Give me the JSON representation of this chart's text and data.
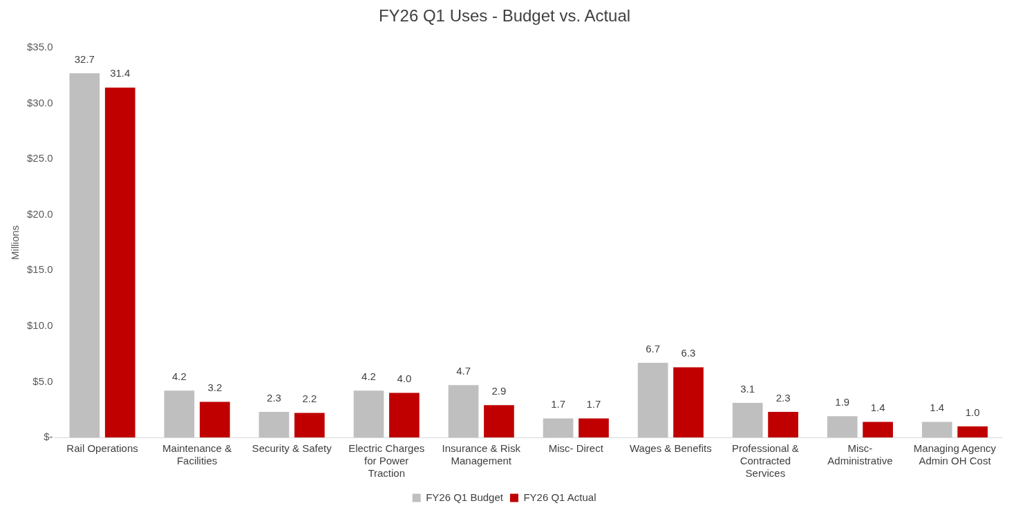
{
  "chart_data": {
    "type": "bar",
    "title": "FY26 Q1 Uses - Budget vs. Actual",
    "ylabel": "Millions",
    "categories": [
      "Rail Operations",
      "Maintenance & Facilities",
      "Security & Safety",
      "Electric Charges for Power Traction",
      "Insurance & Risk Management",
      "Misc- Direct",
      "Wages & Benefits",
      "Professional & Contracted Services",
      "Misc- Administrative",
      "Managing Agency Admin OH Cost"
    ],
    "series": [
      {
        "name": "FY26 Q1 Budget",
        "color": "#bfbfbf",
        "values": [
          32.7,
          4.2,
          2.3,
          4.2,
          4.7,
          1.7,
          6.7,
          3.1,
          1.9,
          1.4
        ],
        "value_labels": [
          "32.7",
          "4.2",
          "2.3",
          "4.2",
          "4.7",
          "1.7",
          "6.7",
          "3.1",
          "1.9",
          "1.4"
        ]
      },
      {
        "name": "FY26 Q1 Actual",
        "color": "#c00000",
        "values": [
          31.4,
          3.2,
          2.2,
          4.0,
          2.9,
          1.7,
          6.3,
          2.3,
          1.4,
          1.0
        ],
        "value_labels": [
          "31.4",
          "3.2",
          "2.2",
          "4.0",
          "2.9",
          "1.7",
          "6.3",
          "2.3",
          "1.4",
          "1.0"
        ]
      }
    ],
    "ylim": [
      0,
      35
    ],
    "yticks": [
      {
        "value": 0,
        "label": "$-"
      },
      {
        "value": 5,
        "label": "$5.0"
      },
      {
        "value": 10,
        "label": "$10.0"
      },
      {
        "value": 15,
        "label": "$15.0"
      },
      {
        "value": 20,
        "label": "$20.0"
      },
      {
        "value": 25,
        "label": "$25.0"
      },
      {
        "value": 30,
        "label": "$30.0"
      },
      {
        "value": 35,
        "label": "$35.0"
      }
    ],
    "grid": false,
    "legend": "bottom"
  }
}
